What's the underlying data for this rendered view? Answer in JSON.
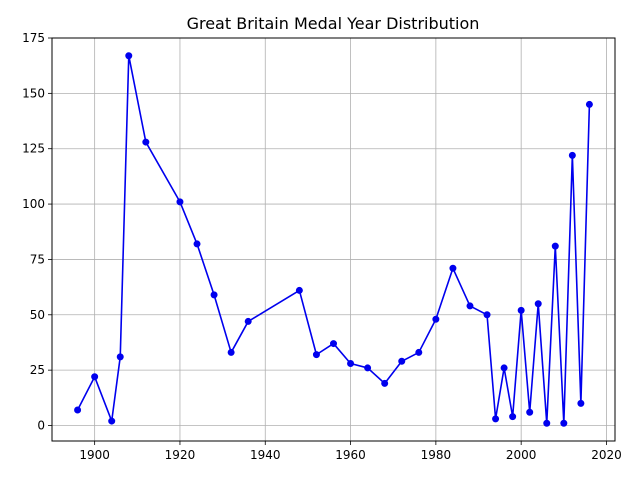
{
  "chart_data": {
    "type": "line",
    "title": "Great Britain Medal Year Distribution",
    "xlabel": "",
    "ylabel": "",
    "xlim": [
      1890,
      2022
    ],
    "ylim": [
      -7,
      175
    ],
    "xticks": [
      1900,
      1920,
      1940,
      1960,
      1980,
      2000,
      2020
    ],
    "yticks": [
      0,
      25,
      50,
      75,
      100,
      125,
      150,
      175
    ],
    "grid": true,
    "series": [
      {
        "color": "#0000ee",
        "x": [
          1896,
          1900,
          1904,
          1906,
          1908,
          1912,
          1920,
          1924,
          1928,
          1932,
          1936,
          1948,
          1952,
          1956,
          1960,
          1964,
          1968,
          1972,
          1976,
          1980,
          1984,
          1988,
          1992,
          1994,
          1996,
          1998,
          2000,
          2002,
          2004,
          2006,
          2008,
          2010,
          2012,
          2014,
          2016
        ],
        "y": [
          7,
          22,
          2,
          31,
          167,
          128,
          101,
          82,
          59,
          33,
          47,
          61,
          32,
          37,
          28,
          26,
          19,
          29,
          33,
          48,
          71,
          54,
          50,
          3,
          26,
          4,
          52,
          6,
          55,
          1,
          81,
          1,
          122,
          10,
          145
        ]
      }
    ]
  }
}
